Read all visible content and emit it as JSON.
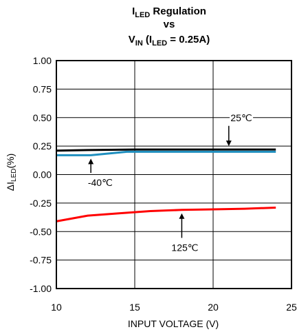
{
  "chart_data": {
    "type": "line",
    "title": {
      "line1": {
        "base": "I",
        "sub": "LED",
        "rest": " Regulation"
      },
      "line2": "vs",
      "line3": {
        "base": "V",
        "sub": "IN",
        "mid": " (I",
        "sub2": "LED",
        "rest": " = 0.25A)"
      }
    },
    "xlabel": "INPUT VOLTAGE (V)",
    "ylabel": {
      "pre": "ΔI",
      "sub": "LED",
      "post": "(%)"
    },
    "xlim": [
      10,
      25
    ],
    "ylim": [
      -1.0,
      1.0
    ],
    "x_ticks": [
      "10",
      "15",
      "20",
      "25"
    ],
    "y_ticks": [
      "1.00",
      "0.75",
      "0.50",
      "0.25",
      "0.00",
      "-0.25",
      "-0.50",
      "-0.75",
      "-1.00"
    ],
    "grid": true,
    "series": [
      {
        "name": "25℃",
        "color": "#000000",
        "x": [
          10,
          12,
          15,
          18,
          21,
          24
        ],
        "y": [
          0.21,
          0.215,
          0.22,
          0.22,
          0.22,
          0.22
        ]
      },
      {
        "name": "-40℃",
        "color": "#1f8fbf",
        "x": [
          10,
          12.2,
          14.5,
          15.5,
          18,
          21,
          24
        ],
        "y": [
          0.17,
          0.17,
          0.2,
          0.2,
          0.2,
          0.2,
          0.2
        ]
      },
      {
        "name": "125℃",
        "color": "#ff0000",
        "x": [
          10,
          12,
          14,
          16,
          18,
          20,
          22,
          24
        ],
        "y": [
          -0.41,
          -0.36,
          -0.34,
          -0.32,
          -0.31,
          -0.305,
          -0.3,
          -0.29
        ]
      }
    ],
    "annotations": [
      {
        "text": "25℃",
        "series": "25℃",
        "at_x": 21,
        "at_y": 0.22,
        "label_x": 21.8,
        "label_y": 0.5
      },
      {
        "text": "-40℃",
        "series": "-40℃",
        "at_x": 12.2,
        "at_y": 0.17,
        "label_x": 12.8,
        "label_y": -0.07
      },
      {
        "text": "125℃",
        "series": "125℃",
        "at_x": 18,
        "at_y": -0.31,
        "label_x": 18.2,
        "label_y": -0.64
      }
    ]
  }
}
